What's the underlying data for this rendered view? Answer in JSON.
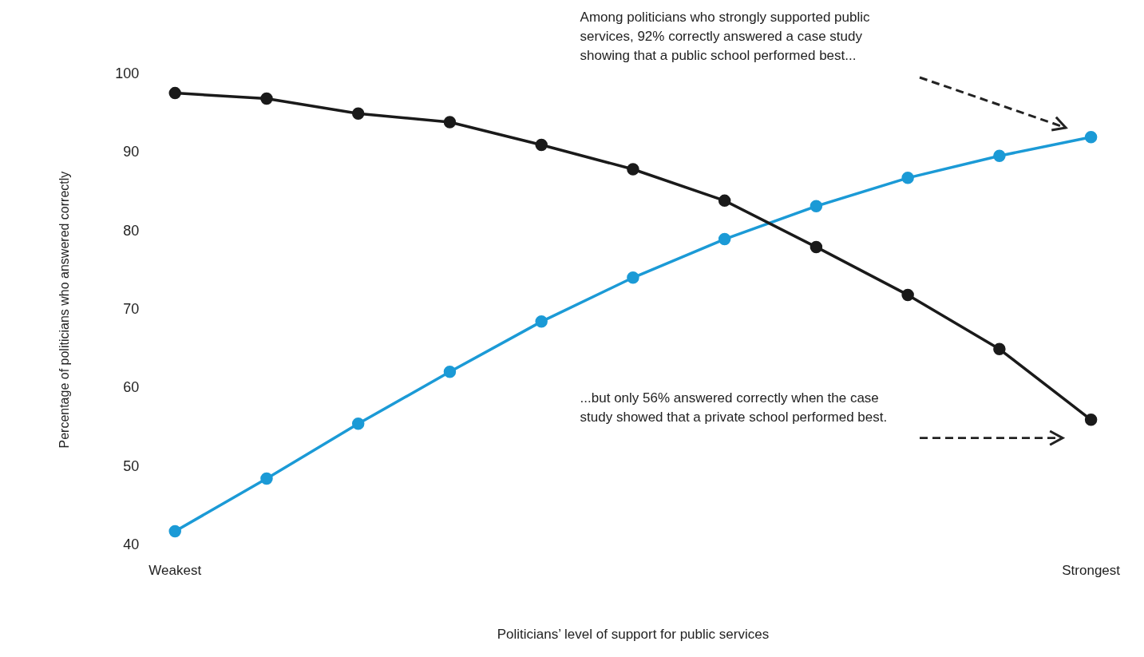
{
  "chart_data": {
    "type": "line",
    "xlabel": "Politicians’ level of support for public services",
    "ylabel": "Percentage of politicians who answered correctly",
    "categories": [
      "Weakest",
      null,
      null,
      null,
      null,
      null,
      null,
      null,
      null,
      null,
      "Strongest"
    ],
    "series": [
      {
        "color": "#1a1a1a",
        "values": [
          97.6,
          96.9,
          95,
          93.9,
          91,
          87.9,
          83.9,
          78,
          71.9,
          65,
          56
        ]
      },
      {
        "color": "#1b9ad6",
        "values": [
          41.8,
          48.5,
          55.5,
          62.1,
          68.5,
          74.1,
          79,
          83.2,
          86.8,
          89.6,
          92
        ]
      }
    ],
    "ylim": [
      40,
      100
    ],
    "yticks": [
      40,
      50,
      60,
      70,
      80,
      90,
      100
    ],
    "grid": false,
    "legend": false,
    "marker": "circle",
    "line_style": "solid",
    "annotations": [
      "Among politicians who strongly supported public services, 92% correctly answered a case study showing that a public school performed best...",
      "...but only 56% answered correctly when the case study showed that a private school performed best."
    ]
  }
}
